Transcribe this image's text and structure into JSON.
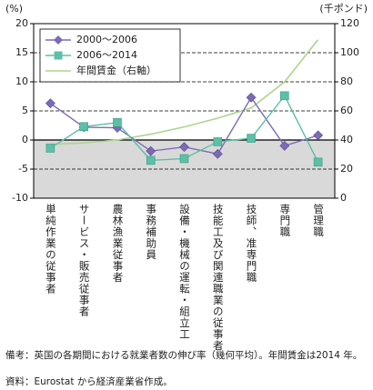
{
  "chart_data": {
    "type": "line",
    "y_unit": "(%)",
    "y2_unit": "(千ポンド)",
    "categories": [
      "単純作業の従事者",
      "サービス・販売従事者",
      "農林漁業従事者",
      "事務補助員",
      "設備・機械の運転・組立工",
      "技能工及び関連職業の従事者",
      "技師、准専門職",
      "専門職",
      "管理職"
    ],
    "series": [
      {
        "name": "2000～2006",
        "color": "#7b6bb5",
        "marker": "diamond",
        "values": [
          6.3,
          2.2,
          2.1,
          -1.9,
          -1.2,
          -2.4,
          7.3,
          -1.0,
          0.8
        ]
      },
      {
        "name": "2006～2014",
        "color": "#5cbfa6",
        "marker": "square",
        "values": [
          -1.4,
          2.3,
          3.0,
          -3.5,
          -3.2,
          -0.3,
          0.3,
          7.6,
          -3.8
        ]
      },
      {
        "name": "年間賃金（右軸）",
        "color": "#aed48f",
        "axis": "y2",
        "values": [
          37,
          38,
          40,
          44,
          49,
          55,
          62,
          80,
          109
        ]
      }
    ],
    "ylim": [
      -10,
      20
    ],
    "yticks": [
      -10,
      -5,
      0,
      5,
      10,
      15,
      20
    ],
    "y2lim": [
      0,
      120
    ],
    "y2ticks": [
      0,
      20,
      40,
      60,
      80,
      100,
      120
    ],
    "grid": true,
    "negative_shade": "#d9d9d9",
    "legend": "upper left",
    "notes": [
      "備考：英国の各期間における就業者数の伸び率（幾何平均）。年間賃金は2014 年。",
      "資料：Eurostat から経済産業省作成。"
    ]
  }
}
